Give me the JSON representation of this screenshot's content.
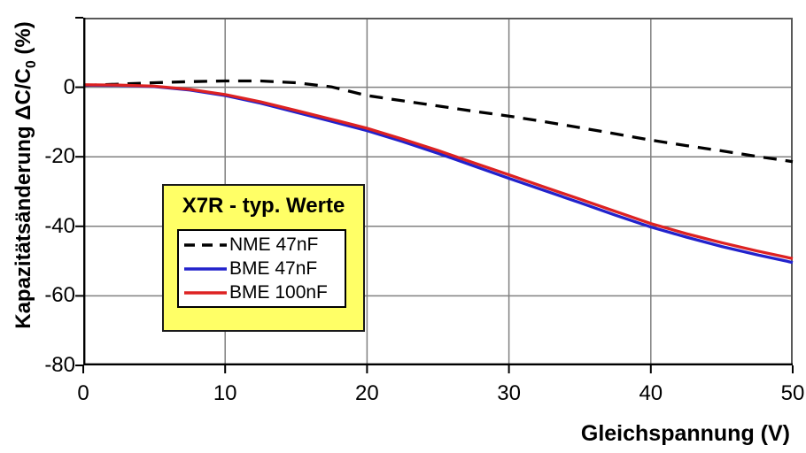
{
  "y_axis": {
    "label_pre": "Kapazitätsänderung ΔC/C",
    "label_sub": "0",
    "label_post": " (%)",
    "tick_labels": [
      "0",
      "-20",
      "-40",
      "-60",
      "-80"
    ]
  },
  "x_axis": {
    "label": "Gleichspannung (V)",
    "tick_labels": [
      "0",
      "10",
      "20",
      "30",
      "40",
      "50"
    ]
  },
  "legend": {
    "title": "X7R - typ. Werte",
    "entries": [
      "NME 47nF",
      "BME 47nF",
      "BME 100nF"
    ]
  },
  "colors": {
    "background": "#FFFFFF",
    "grid": "#808080",
    "frame": "#595959",
    "axis": "#000000",
    "legend_bg": "#FFFF66",
    "legend_border": "#1A1A1A"
  },
  "chart_data": {
    "type": "line",
    "title": "",
    "xlabel": "Gleichspannung (V)",
    "ylabel": "Kapazitätsänderung ΔC/C₀ (%)",
    "legend_title": "X7R - typ. Werte",
    "legend_position": "inside lower-left",
    "grid": true,
    "xlim": [
      0,
      50
    ],
    "ylim": [
      -80,
      20
    ],
    "x_ticks": [
      0,
      10,
      20,
      30,
      40,
      50
    ],
    "y_ticks": [
      0,
      -20,
      -40,
      -60,
      -80
    ],
    "y_tick_marks": [
      20,
      0,
      -20,
      -40,
      -60,
      -80
    ],
    "grid_x": [
      10,
      20,
      30,
      40
    ],
    "grid_y": [
      0,
      -20,
      -40,
      -60
    ],
    "x": [
      0,
      2.5,
      5,
      7.5,
      10,
      12.5,
      15,
      17.5,
      20,
      22.5,
      25,
      27.5,
      30,
      32.5,
      35,
      37.5,
      40,
      42.5,
      45,
      47.5,
      50
    ],
    "series": [
      {
        "name": "NME 47nF",
        "color": "#000000",
        "style": "dashed",
        "values": [
          0.5,
          0.9,
          1.3,
          1.6,
          1.8,
          1.8,
          1.3,
          0.1,
          -2.4,
          -3.9,
          -5.4,
          -6.9,
          -8.3,
          -9.9,
          -11.6,
          -13.4,
          -15.2,
          -16.8,
          -18.3,
          -19.9,
          -21.4
        ]
      },
      {
        "name": "BME 47nF",
        "color": "#2222CC",
        "style": "solid",
        "values": [
          0.6,
          0.5,
          0.2,
          -0.8,
          -2.4,
          -4.6,
          -7.2,
          -9.8,
          -12.5,
          -15.6,
          -19.0,
          -22.6,
          -26.2,
          -29.7,
          -33.2,
          -36.8,
          -40.2,
          -43.1,
          -45.8,
          -48.2,
          -50.4
        ]
      },
      {
        "name": "BME 100nF",
        "color": "#DD2222",
        "style": "solid",
        "values": [
          0.7,
          0.6,
          0.3,
          -0.6,
          -2.1,
          -4.2,
          -6.7,
          -9.2,
          -11.8,
          -14.9,
          -18.2,
          -21.7,
          -25.2,
          -28.7,
          -32.2,
          -35.7,
          -39.2,
          -42.1,
          -44.7,
          -47.1,
          -49.3
        ]
      }
    ]
  }
}
